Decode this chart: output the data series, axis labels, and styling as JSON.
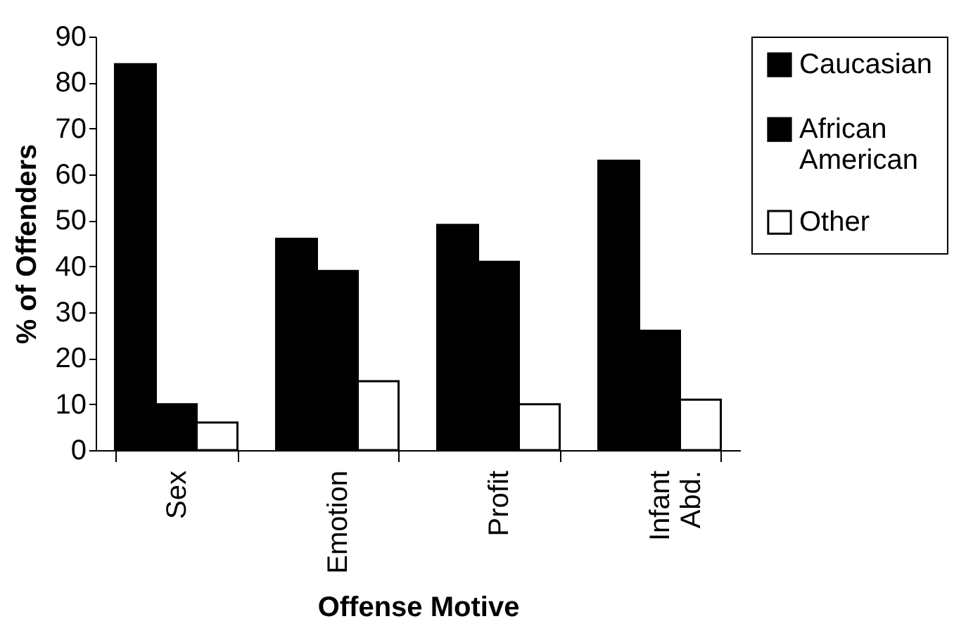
{
  "chart_data": {
    "type": "bar",
    "xlabel": "Offense Motive",
    "ylabel": "% of Offenders",
    "categories": [
      "Sex",
      "Emotion",
      "Profit",
      "Infant Abd."
    ],
    "series": [
      {
        "name": "Caucasian",
        "color": "#000000",
        "values": [
          84,
          46,
          49,
          63
        ]
      },
      {
        "name": "African American",
        "color": "#000000",
        "values": [
          10,
          39,
          41,
          26
        ]
      },
      {
        "name": "Other",
        "color": "#ffffff",
        "values": [
          6,
          15,
          10,
          11
        ]
      }
    ],
    "ylim": [
      0,
      90
    ],
    "yticks": [
      0,
      10,
      20,
      30,
      40,
      50,
      60,
      70,
      80,
      90
    ],
    "grid": false,
    "legend": "right"
  }
}
